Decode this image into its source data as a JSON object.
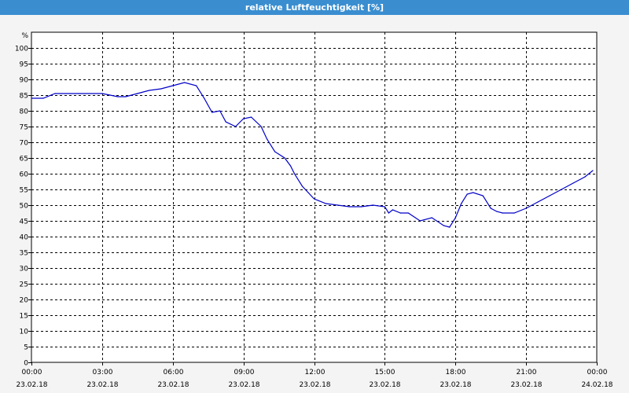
{
  "window": {
    "title": "relative Luftfeuchtigkeit [%]"
  },
  "chart_data": {
    "type": "line",
    "title": "relative Luftfeuchtigkeit [%]",
    "ylabel": "%",
    "ylim": [
      0,
      105
    ],
    "yticks": [
      0,
      5,
      10,
      15,
      20,
      25,
      30,
      35,
      40,
      45,
      50,
      55,
      60,
      65,
      70,
      75,
      80,
      85,
      90,
      95,
      100
    ],
    "xlim": [
      "23.02.18 00:00",
      "24.02.18 00:00"
    ],
    "xticks": [
      {
        "time": "00:00",
        "date": "23.02.18"
      },
      {
        "time": "03:00",
        "date": "23.02.18"
      },
      {
        "time": "06:00",
        "date": "23.02.18"
      },
      {
        "time": "09:00",
        "date": "23.02.18"
      },
      {
        "time": "12:00",
        "date": "23.02.18"
      },
      {
        "time": "15:00",
        "date": "23.02.18"
      },
      {
        "time": "18:00",
        "date": "23.02.18"
      },
      {
        "time": "21:00",
        "date": "23.02.18"
      },
      {
        "time": "00:00",
        "date": "24.02.18"
      }
    ],
    "grid": true,
    "line_color": "#0000c8",
    "series": [
      {
        "x": [
          "00:00",
          "00:30",
          "01:00",
          "02:00",
          "03:00",
          "03:20",
          "03:40",
          "04:00",
          "04:30",
          "05:00",
          "05:30",
          "06:00",
          "06:30",
          "07:00",
          "07:20",
          "07:40",
          "08:00",
          "08:15",
          "08:40",
          "09:00",
          "09:20",
          "09:45",
          "10:00",
          "10:20",
          "10:45",
          "11:00",
          "11:10",
          "11:30",
          "11:45",
          "12:00",
          "12:30",
          "13:00",
          "13:30",
          "14:00",
          "14:30",
          "15:00",
          "15:10",
          "15:20",
          "15:40",
          "16:00",
          "16:30",
          "17:00",
          "17:30",
          "17:45",
          "18:00",
          "18:15",
          "18:30",
          "18:45",
          "19:10",
          "19:30",
          "19:45",
          "20:00",
          "20:30",
          "21:00",
          "21:30",
          "22:00",
          "22:30",
          "23:00",
          "23:30",
          "23:50"
        ],
        "values": [
          84,
          84,
          85.5,
          85.5,
          85.5,
          85,
          84.5,
          84.5,
          85.5,
          86.5,
          87,
          88,
          89,
          88,
          84,
          79.5,
          80,
          76.5,
          75,
          77.5,
          78,
          75,
          71,
          67,
          65,
          62.5,
          60,
          56,
          54,
          52,
          50.5,
          50,
          49.5,
          49.5,
          50,
          49.5,
          47.5,
          48.5,
          47.5,
          47.5,
          45,
          46,
          43.5,
          43,
          46,
          50.5,
          53.5,
          54,
          53,
          49,
          48,
          47.5,
          47.5,
          49,
          51,
          53,
          55,
          57,
          59,
          61
        ]
      }
    ]
  }
}
